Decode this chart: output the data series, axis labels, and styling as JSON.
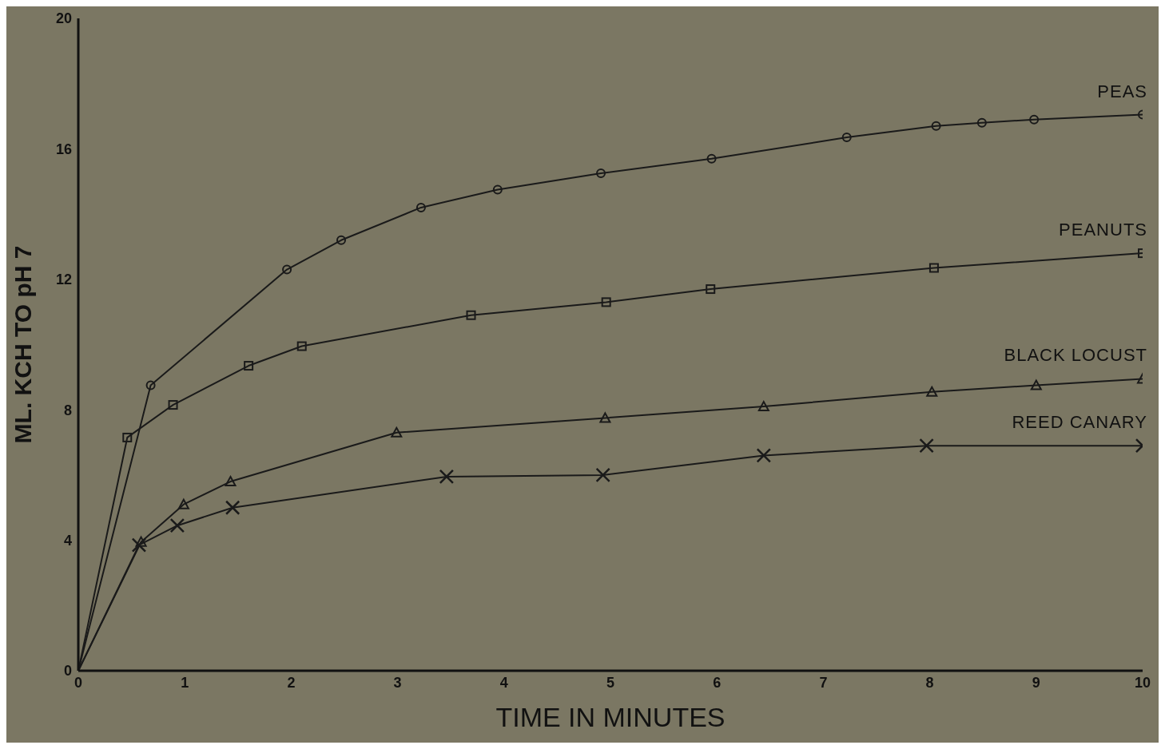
{
  "chart_data": {
    "type": "line",
    "xlabel": "TIME IN MINUTES",
    "ylabel": "ML. KCH TO pH 7",
    "xlim": [
      0,
      10
    ],
    "xticks": [
      0,
      1,
      2,
      3,
      4,
      5,
      6,
      7,
      8,
      9,
      10
    ],
    "ylim": [
      0,
      20
    ],
    "yticks": [
      0,
      4,
      8,
      12,
      16,
      20
    ],
    "grid": false,
    "line_style": "solid",
    "series": [
      {
        "name": "PEAS",
        "color": "#1a1a1a",
        "marker": "circle",
        "x": [
          0,
          0.68,
          1.96,
          2.47,
          3.22,
          3.94,
          4.91,
          5.95,
          7.22,
          8.06,
          8.49,
          8.98,
          10
        ],
        "values": [
          0,
          8.75,
          12.3,
          13.2,
          14.2,
          14.75,
          15.25,
          15.7,
          16.35,
          16.7,
          16.8,
          16.9,
          17.05
        ]
      },
      {
        "name": "PEANUTS",
        "color": "#1a1a1a",
        "marker": "square",
        "x": [
          0,
          0.46,
          0.89,
          1.6,
          2.1,
          3.69,
          4.96,
          5.94,
          8.04,
          10
        ],
        "values": [
          0,
          7.15,
          8.15,
          9.35,
          9.95,
          10.9,
          11.3,
          11.7,
          12.35,
          12.8
        ]
      },
      {
        "name": "BLACK LOCUST",
        "color": "#1a1a1a",
        "marker": "triangle",
        "x": [
          0,
          0.59,
          0.99,
          1.43,
          2.99,
          4.95,
          6.44,
          8.02,
          9.0,
          10
        ],
        "values": [
          0,
          3.95,
          5.1,
          5.8,
          7.3,
          7.75,
          8.1,
          8.55,
          8.75,
          8.95
        ]
      },
      {
        "name": "REED CANARY",
        "color": "#1a1a1a",
        "marker": "cross",
        "x": [
          0,
          0.57,
          0.93,
          1.45,
          3.46,
          4.93,
          6.44,
          7.97,
          10
        ],
        "values": [
          0,
          3.85,
          4.45,
          5.0,
          5.95,
          6.0,
          6.6,
          6.9,
          6.9
        ]
      }
    ]
  }
}
